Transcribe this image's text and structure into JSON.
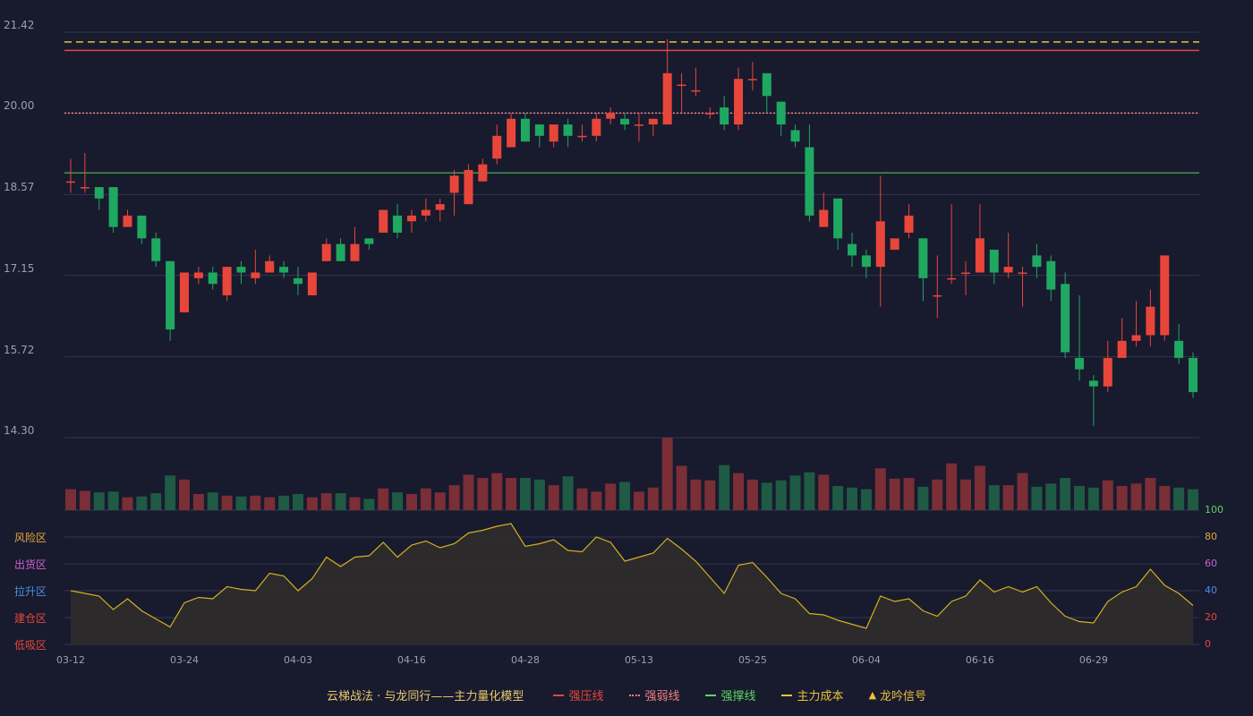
{
  "chart_data": {
    "type": "candlestick",
    "price_axis": {
      "ticks": [
        21.42,
        20.0,
        18.57,
        17.15,
        15.72,
        14.3
      ],
      "range": [
        14.3,
        21.42
      ]
    },
    "x_tick_labels": [
      "03-12",
      "03-24",
      "04-03",
      "04-16",
      "04-28",
      "05-13",
      "05-25",
      "06-04",
      "06-16",
      "06-29"
    ],
    "candles": [
      [
        18.8,
        18.8,
        19.2,
        18.6
      ],
      [
        18.7,
        18.7,
        19.3,
        18.6
      ],
      [
        18.7,
        18.5,
        18.7,
        18.3
      ],
      [
        18.7,
        18.0,
        18.7,
        17.9
      ],
      [
        18.0,
        18.2,
        18.3,
        18.0
      ],
      [
        18.2,
        17.8,
        18.2,
        17.7
      ],
      [
        17.8,
        17.4,
        17.9,
        17.3
      ],
      [
        17.4,
        16.2,
        17.4,
        16.0
      ],
      [
        16.5,
        17.2,
        17.2,
        16.5
      ],
      [
        17.1,
        17.2,
        17.3,
        17.0
      ],
      [
        17.2,
        17.0,
        17.3,
        16.9
      ],
      [
        16.8,
        17.3,
        17.3,
        16.7
      ],
      [
        17.3,
        17.2,
        17.4,
        17.0
      ],
      [
        17.1,
        17.2,
        17.6,
        17.0
      ],
      [
        17.2,
        17.4,
        17.5,
        17.2
      ],
      [
        17.3,
        17.2,
        17.4,
        17.1
      ],
      [
        17.1,
        17.0,
        17.3,
        16.8
      ],
      [
        16.8,
        17.2,
        17.2,
        16.8
      ],
      [
        17.4,
        17.7,
        17.8,
        17.4
      ],
      [
        17.7,
        17.4,
        17.8,
        17.4
      ],
      [
        17.4,
        17.7,
        18.0,
        17.4
      ],
      [
        17.8,
        17.7,
        17.8,
        17.6
      ],
      [
        17.9,
        18.3,
        18.3,
        17.9
      ],
      [
        18.2,
        17.9,
        18.4,
        17.8
      ],
      [
        18.1,
        18.2,
        18.3,
        17.9
      ],
      [
        18.2,
        18.3,
        18.5,
        18.1
      ],
      [
        18.3,
        18.4,
        18.5,
        18.1
      ],
      [
        18.6,
        18.9,
        19.0,
        18.2
      ],
      [
        18.4,
        19.0,
        19.1,
        18.4
      ],
      [
        18.8,
        19.1,
        19.2,
        18.8
      ],
      [
        19.2,
        19.6,
        19.8,
        19.1
      ],
      [
        19.4,
        19.9,
        20.0,
        19.4
      ],
      [
        19.9,
        19.5,
        20.0,
        19.5
      ],
      [
        19.8,
        19.6,
        19.8,
        19.4
      ],
      [
        19.5,
        19.8,
        19.8,
        19.4
      ],
      [
        19.8,
        19.6,
        19.9,
        19.4
      ],
      [
        19.6,
        19.6,
        19.8,
        19.5
      ],
      [
        19.6,
        19.9,
        20.0,
        19.5
      ],
      [
        19.9,
        20.0,
        20.1,
        19.8
      ],
      [
        19.9,
        19.8,
        20.0,
        19.7
      ],
      [
        19.8,
        19.8,
        20.0,
        19.5
      ],
      [
        19.8,
        19.9,
        19.9,
        19.6
      ],
      [
        19.8,
        20.7,
        21.3,
        19.8
      ],
      [
        20.5,
        20.5,
        20.7,
        20.0
      ],
      [
        20.4,
        20.4,
        20.8,
        20.3
      ],
      [
        20.0,
        20.0,
        20.1,
        19.9
      ],
      [
        20.1,
        19.8,
        20.3,
        19.7
      ],
      [
        19.8,
        20.6,
        20.8,
        19.7
      ],
      [
        20.6,
        20.6,
        20.9,
        20.4
      ],
      [
        20.7,
        20.3,
        20.7,
        20.0
      ],
      [
        20.2,
        19.8,
        20.2,
        19.6
      ],
      [
        19.7,
        19.5,
        19.8,
        19.4
      ],
      [
        19.4,
        18.2,
        19.8,
        18.1
      ],
      [
        18.0,
        18.3,
        18.6,
        18.0
      ],
      [
        18.5,
        17.8,
        18.5,
        17.6
      ],
      [
        17.7,
        17.5,
        17.9,
        17.3
      ],
      [
        17.5,
        17.3,
        17.6,
        17.1
      ],
      [
        17.3,
        18.1,
        18.9,
        16.6
      ],
      [
        17.6,
        17.8,
        17.8,
        17.6
      ],
      [
        17.9,
        18.2,
        18.4,
        17.8
      ],
      [
        17.8,
        17.1,
        17.8,
        16.7
      ],
      [
        16.8,
        16.8,
        17.5,
        16.4
      ],
      [
        17.1,
        17.1,
        18.4,
        17.0
      ],
      [
        17.2,
        17.2,
        17.4,
        16.8
      ],
      [
        17.2,
        17.8,
        18.4,
        17.2
      ],
      [
        17.6,
        17.2,
        17.6,
        17.0
      ],
      [
        17.2,
        17.3,
        17.9,
        17.1
      ],
      [
        17.2,
        17.2,
        17.3,
        16.6
      ],
      [
        17.5,
        17.3,
        17.7,
        17.1
      ],
      [
        17.4,
        16.9,
        17.5,
        16.7
      ],
      [
        17.0,
        15.8,
        17.2,
        15.7
      ],
      [
        15.7,
        15.5,
        16.8,
        15.3
      ],
      [
        15.3,
        15.2,
        15.4,
        14.5
      ],
      [
        15.2,
        15.7,
        16.0,
        15.1
      ],
      [
        15.7,
        16.0,
        16.4,
        15.7
      ],
      [
        16.0,
        16.1,
        16.7,
        15.9
      ],
      [
        16.1,
        16.6,
        16.9,
        15.9
      ],
      [
        16.1,
        17.5,
        17.5,
        16.0
      ],
      [
        16.0,
        15.7,
        16.3,
        15.6
      ],
      [
        15.7,
        15.1,
        15.8,
        15.0
      ]
    ],
    "volume": [
      26,
      24,
      22,
      23,
      16,
      17,
      21,
      43,
      38,
      20,
      22,
      18,
      17,
      18,
      16,
      18,
      20,
      16,
      21,
      21,
      16,
      14,
      27,
      22,
      20,
      27,
      22,
      31,
      44,
      40,
      46,
      40,
      40,
      38,
      31,
      42,
      27,
      23,
      33,
      35,
      23,
      28,
      90,
      55,
      38,
      37,
      56,
      46,
      38,
      34,
      37,
      43,
      47,
      44,
      30,
      28,
      26,
      52,
      39,
      40,
      29,
      38,
      58,
      38,
      55,
      31,
      31,
      46,
      29,
      33,
      40,
      30,
      28,
      37,
      30,
      33,
      40,
      30,
      28,
      26
    ],
    "oscillator": {
      "axis_ticks": [
        100,
        80,
        60,
        40,
        20,
        0
      ],
      "zones": [
        "风险区",
        "出货区",
        "拉升区",
        "建仓区",
        "低吸区"
      ],
      "values": [
        40,
        38,
        36,
        26,
        34,
        25,
        19,
        13,
        31,
        35,
        34,
        43,
        41,
        40,
        53,
        51,
        40,
        49,
        65,
        58,
        65,
        66,
        76,
        65,
        74,
        77,
        72,
        75,
        83,
        85,
        88,
        90,
        73,
        75,
        78,
        70,
        69,
        80,
        76,
        62,
        65,
        68,
        79,
        71,
        62,
        50,
        38,
        59,
        61,
        50,
        38,
        34,
        23,
        22,
        18,
        15,
        12,
        36,
        32,
        34,
        25,
        21,
        32,
        36,
        48,
        39,
        43,
        39,
        43,
        31,
        21,
        17,
        16,
        32,
        39,
        43,
        56,
        44,
        38,
        29
      ]
    },
    "reference_lines": {
      "resistance": 21.1,
      "weak": 20.0,
      "support": 18.95,
      "main_cost": 21.25
    },
    "legend": {
      "title": "云梯战法 · 与龙同行——主力量化模型",
      "items": [
        {
          "label": "强压线",
          "color": "#e8463a",
          "style": "solid"
        },
        {
          "label": "强弱线",
          "color": "#f08080",
          "style": "dotted"
        },
        {
          "label": "强撑线",
          "color": "#5dd55d",
          "style": "solid"
        },
        {
          "label": "主力成本",
          "color": "#e8c23a",
          "style": "dashed"
        },
        {
          "label": "龙吟信号",
          "color": "#e8c23a",
          "style": "triangle"
        }
      ]
    },
    "colors": {
      "up": "#e8463a",
      "down": "#1fa861",
      "background": "#181a2e",
      "oscillator_line": "#d4b020"
    }
  }
}
